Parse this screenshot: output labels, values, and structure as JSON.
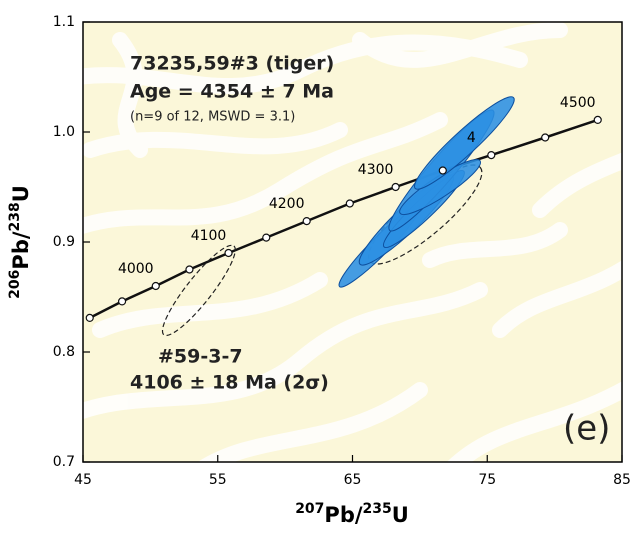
{
  "chart_data": {
    "type": "concordia",
    "title_lines": [
      "73235,59#3 (tiger)",
      "Age = 4354 ± 7 Ma"
    ],
    "subtitle": "(n=9 of 12, MSWD = 3.1)",
    "annotation_lines": [
      "#59-3-7",
      "4106 ± 18 Ma (2σ)"
    ],
    "panel_label": "(e)",
    "x_label_parts": [
      "207",
      "Pb/",
      "235",
      "U"
    ],
    "y_label_parts": [
      "206",
      "Pb/",
      "238",
      "U"
    ],
    "xlim": [
      45,
      85
    ],
    "xticks": [
      45,
      55,
      65,
      75,
      85
    ],
    "ylim": [
      0.7,
      1.1
    ],
    "yticks": [
      0.7,
      0.8,
      0.9,
      {
        "value": 1,
        "label": "1.0"
      },
      1.1
    ],
    "concordia": {
      "color": "#111111",
      "x": [
        45.5,
        47.9,
        50.4,
        52.9,
        55.8,
        58.6,
        61.6,
        64.8,
        68.2,
        71.7,
        75.3,
        79.3,
        83.2
      ],
      "values": [
        0.831,
        0.846,
        0.86,
        0.875,
        0.89,
        0.904,
        0.919,
        0.935,
        0.95,
        0.965,
        0.979,
        0.995,
        1.011
      ],
      "point_labels": [
        null,
        null,
        "4000",
        null,
        "4100",
        null,
        "4200",
        null,
        "4300",
        null,
        "4",
        null,
        "4500"
      ]
    },
    "ellipses": {
      "color": "#2b8fe3",
      "edge_color": "#0d4f9e",
      "x": [
        67.0,
        69.0,
        70.3,
        71.6,
        71.5,
        73.3
      ],
      "y": [
        0.896,
        0.92,
        0.93,
        0.965,
        0.95,
        0.99
      ],
      "x_err": [
        3.0,
        3.5,
        3.0,
        3.9,
        3.0,
        3.7
      ],
      "y_err": [
        0.037,
        0.041,
        0.035,
        0.055,
        0.025,
        0.042
      ],
      "rho": [
        0.95,
        0.93,
        0.94,
        0.95,
        0.9,
        0.94
      ]
    },
    "dashed_ellipses": {
      "color": "#222222",
      "x": [
        53.6,
        70.4
      ],
      "y": [
        0.856,
        0.925
      ],
      "x_err": [
        2.7,
        4.2
      ],
      "y_err": [
        0.041,
        0.045
      ],
      "rho": [
        0.9,
        0.85
      ]
    }
  }
}
